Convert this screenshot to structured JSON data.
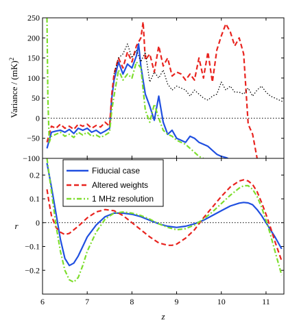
{
  "chart_data": [
    {
      "type": "line",
      "title": "",
      "xlabel": "",
      "ylabel": "Variance / (mK)",
      "ylabel_superscript": "2",
      "xlim": [
        6,
        11.4
      ],
      "ylim": [
        -100,
        250
      ],
      "xticks": [
        6,
        7,
        8,
        9,
        10,
        11
      ],
      "yticks": [
        -100,
        -50,
        0,
        50,
        100,
        150,
        200,
        250
      ],
      "ytick_labels": [
        "−100",
        "−50",
        "0",
        "50",
        "100",
        "150",
        "200",
        "250"
      ],
      "grid": false,
      "reference_line": {
        "y": 0,
        "style": "dotted"
      },
      "series": [
        {
          "name": "Fiducial case",
          "color": "#1f4fe0",
          "dash": "solid",
          "x": [
            6.1,
            6.2,
            6.3,
            6.4,
            6.5,
            6.6,
            6.7,
            6.8,
            6.9,
            7.0,
            7.1,
            7.2,
            7.3,
            7.4,
            7.5,
            7.55,
            7.6,
            7.7,
            7.8,
            7.9,
            8.0,
            8.1,
            8.15,
            8.2,
            8.3,
            8.4,
            8.5,
            8.6,
            8.7,
            8.8,
            8.9,
            9.0,
            9.1,
            9.2,
            9.3,
            9.4,
            9.5,
            9.6,
            9.7,
            9.8,
            9.9,
            10.0,
            10.1,
            10.15
          ],
          "y": [
            -75,
            -35,
            -32,
            -30,
            -35,
            -28,
            -38,
            -25,
            -30,
            -25,
            -35,
            -30,
            -38,
            -32,
            -25,
            50,
            95,
            140,
            110,
            135,
            125,
            155,
            185,
            130,
            60,
            30,
            -5,
            55,
            -10,
            -40,
            -30,
            -50,
            -55,
            -60,
            -45,
            -50,
            -60,
            -65,
            -70,
            -80,
            -90,
            -95,
            -98,
            -100
          ]
        },
        {
          "name": "Altered weights",
          "color": "#e8231e",
          "dash": "dashed",
          "x": [
            6.1,
            6.2,
            6.3,
            6.4,
            6.5,
            6.6,
            6.7,
            6.8,
            6.9,
            7.0,
            7.1,
            7.2,
            7.3,
            7.4,
            7.5,
            7.55,
            7.6,
            7.7,
            7.8,
            7.9,
            8.0,
            8.1,
            8.2,
            8.25,
            8.3,
            8.4,
            8.5,
            8.6,
            8.7,
            8.8,
            8.9,
            9.0,
            9.1,
            9.2,
            9.3,
            9.4,
            9.5,
            9.6,
            9.7,
            9.8,
            9.9,
            10.0,
            10.1,
            10.2,
            10.3,
            10.4,
            10.5,
            10.6,
            10.7,
            10.8
          ],
          "y": [
            -60,
            -20,
            -25,
            -15,
            -25,
            -20,
            -28,
            -15,
            -20,
            -15,
            -25,
            -18,
            -22,
            -10,
            -20,
            60,
            110,
            150,
            125,
            165,
            140,
            180,
            200,
            240,
            145,
            160,
            115,
            180,
            130,
            150,
            105,
            115,
            110,
            95,
            110,
            95,
            150,
            100,
            165,
            90,
            170,
            205,
            235,
            215,
            180,
            200,
            160,
            -15,
            -40,
            -100
          ]
        },
        {
          "name": "1 MHz resolution",
          "color": "#7ddd2c",
          "dash": "dashdot",
          "x": [
            6.1,
            6.12,
            6.15,
            6.2,
            6.3,
            6.4,
            6.5,
            6.6,
            6.7,
            6.8,
            6.9,
            7.0,
            7.1,
            7.2,
            7.3,
            7.4,
            7.5,
            7.55,
            7.6,
            7.7,
            7.8,
            7.9,
            8.0,
            8.1,
            8.2,
            8.3,
            8.4,
            8.5,
            8.6,
            8.7,
            8.8,
            8.9,
            9.0,
            9.1,
            9.2,
            9.3,
            9.4,
            9.5,
            9.6
          ],
          "y": [
            250,
            50,
            -60,
            -45,
            -40,
            -35,
            -45,
            -40,
            -48,
            -35,
            -42,
            -35,
            -45,
            -42,
            -48,
            -42,
            -35,
            20,
            55,
            120,
            95,
            110,
            100,
            140,
            125,
            20,
            -10,
            35,
            0,
            -30,
            -40,
            -45,
            -55,
            -60,
            -65,
            -75,
            -85,
            -95,
            -100
          ]
        },
        {
          "name": "",
          "color": "#000000",
          "dash": "dotted",
          "x": [
            7.6,
            7.7,
            7.8,
            7.9,
            8.0,
            8.1,
            8.2,
            8.3,
            8.4,
            8.5,
            8.6,
            8.7,
            8.8,
            8.9,
            9.0,
            9.1,
            9.2,
            9.3,
            9.4,
            9.5,
            9.6,
            9.7,
            9.8,
            9.9,
            10.0,
            10.1,
            10.2,
            10.3,
            10.4,
            10.5,
            10.6,
            10.7,
            10.8,
            10.9,
            11.0,
            11.1,
            11.2,
            11.3,
            11.4
          ],
          "y": [
            110,
            150,
            160,
            185,
            150,
            170,
            140,
            165,
            90,
            115,
            100,
            120,
            85,
            70,
            80,
            75,
            70,
            55,
            70,
            60,
            50,
            45,
            55,
            60,
            90,
            70,
            80,
            65,
            65,
            60,
            75,
            55,
            70,
            80,
            65,
            55,
            50,
            45,
            40
          ]
        }
      ]
    },
    {
      "type": "line",
      "title": "",
      "xlabel": "z",
      "ylabel": "r",
      "xlim": [
        6,
        11.4
      ],
      "ylim": [
        -0.3,
        0.27
      ],
      "xticks": [
        6,
        7,
        8,
        9,
        10,
        11
      ],
      "yticks": [
        -0.2,
        -0.1,
        0,
        0.1,
        0.2
      ],
      "ytick_labels": [
        "−0.2",
        "−0.1",
        "0",
        "0.1",
        "0.2"
      ],
      "grid": false,
      "reference_line": {
        "y": 0,
        "style": "dotted"
      },
      "legend": {
        "placement": "top-left",
        "entries": [
          "Fiducial case",
          "Altered weights",
          "1 MHz resolution"
        ]
      },
      "series": [
        {
          "name": "Fiducial case",
          "color": "#1f4fe0",
          "dash": "solid",
          "x": [
            6.1,
            6.2,
            6.3,
            6.4,
            6.5,
            6.6,
            6.7,
            6.8,
            6.9,
            7.0,
            7.2,
            7.4,
            7.6,
            7.8,
            8.0,
            8.2,
            8.4,
            8.6,
            8.8,
            9.0,
            9.2,
            9.4,
            9.6,
            9.8,
            10.0,
            10.2,
            10.4,
            10.5,
            10.6,
            10.7,
            10.8,
            10.9,
            11.0,
            11.1,
            11.2,
            11.35
          ],
          "y": [
            0.25,
            0.15,
            0.04,
            -0.07,
            -0.15,
            -0.18,
            -0.17,
            -0.14,
            -0.1,
            -0.06,
            -0.01,
            0.025,
            0.04,
            0.04,
            0.035,
            0.025,
            0.01,
            -0.005,
            -0.015,
            -0.02,
            -0.015,
            -0.005,
            0.01,
            0.03,
            0.05,
            0.07,
            0.082,
            0.085,
            0.083,
            0.075,
            0.055,
            0.03,
            0.0,
            -0.03,
            -0.06,
            -0.11
          ]
        },
        {
          "name": "Altered weights",
          "color": "#e8231e",
          "dash": "dashed",
          "x": [
            6.1,
            6.15,
            6.2,
            6.3,
            6.4,
            6.5,
            6.6,
            6.8,
            7.0,
            7.2,
            7.4,
            7.6,
            7.8,
            8.0,
            8.2,
            8.4,
            8.6,
            8.8,
            8.9,
            9.0,
            9.2,
            9.4,
            9.6,
            9.8,
            10.0,
            10.2,
            10.4,
            10.5,
            10.6,
            10.7,
            10.8,
            10.9,
            11.0,
            11.1,
            11.2,
            11.35
          ],
          "y": [
            0.14,
            0.08,
            0.03,
            -0.02,
            -0.04,
            -0.05,
            -0.045,
            -0.015,
            0.02,
            0.045,
            0.055,
            0.05,
            0.03,
            0.0,
            -0.03,
            -0.06,
            -0.085,
            -0.095,
            -0.095,
            -0.09,
            -0.065,
            -0.03,
            0.02,
            0.065,
            0.11,
            0.15,
            0.175,
            0.18,
            0.175,
            0.16,
            0.13,
            0.085,
            0.035,
            -0.02,
            -0.08,
            -0.16
          ]
        },
        {
          "name": "1 MHz resolution",
          "color": "#7ddd2c",
          "dash": "dashdot",
          "x": [
            6.1,
            6.2,
            6.3,
            6.4,
            6.5,
            6.6,
            6.7,
            6.8,
            6.9,
            7.0,
            7.2,
            7.4,
            7.6,
            7.8,
            8.0,
            8.2,
            8.4,
            8.6,
            8.8,
            9.0,
            9.2,
            9.4,
            9.6,
            9.8,
            10.0,
            10.2,
            10.4,
            10.5,
            10.6,
            10.7,
            10.8,
            10.9,
            11.0,
            11.1,
            11.2,
            11.35
          ],
          "y": [
            0.27,
            0.13,
            -0.01,
            -0.12,
            -0.2,
            -0.24,
            -0.25,
            -0.23,
            -0.18,
            -0.12,
            -0.04,
            0.015,
            0.04,
            0.045,
            0.04,
            0.03,
            0.015,
            -0.005,
            -0.02,
            -0.03,
            -0.025,
            -0.01,
            0.015,
            0.045,
            0.08,
            0.115,
            0.145,
            0.155,
            0.155,
            0.14,
            0.11,
            0.065,
            0.01,
            -0.05,
            -0.12,
            -0.22
          ]
        }
      ]
    }
  ]
}
